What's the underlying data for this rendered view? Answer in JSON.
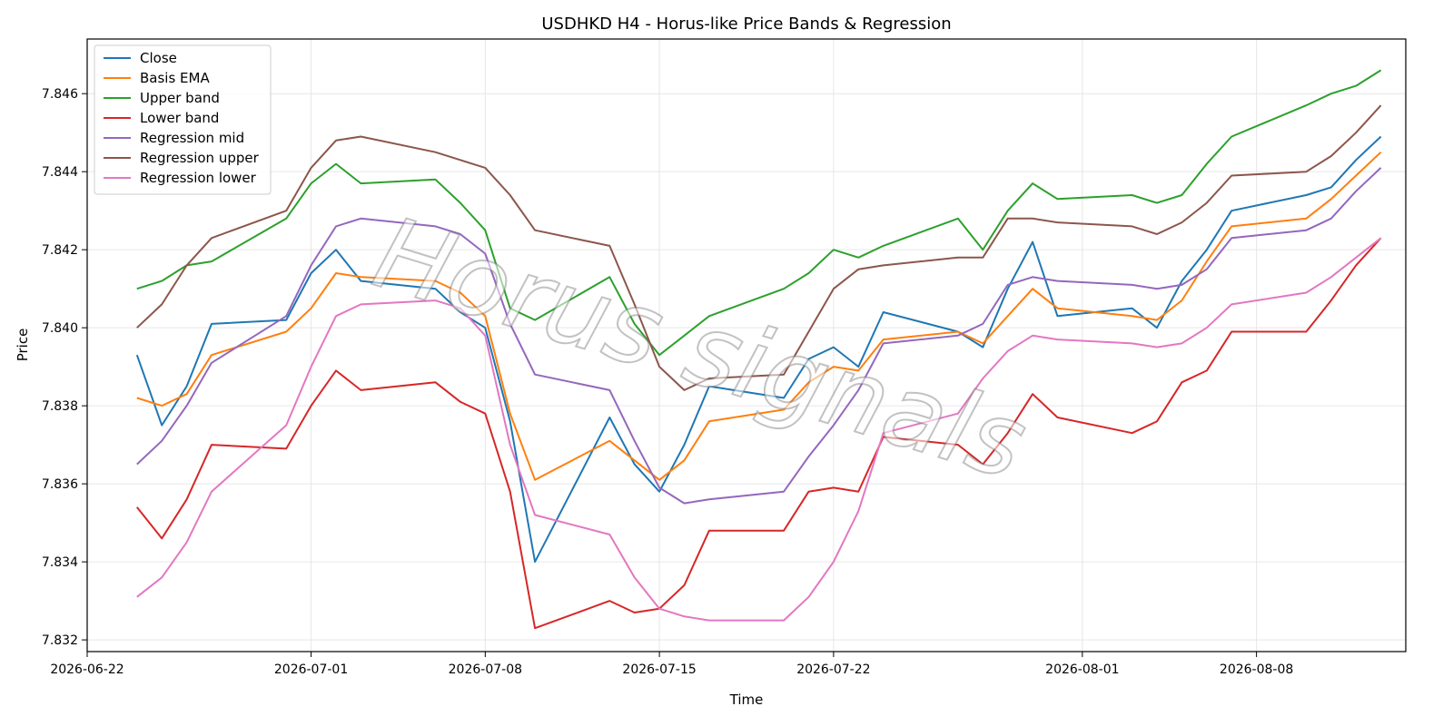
{
  "chart_data": {
    "type": "line",
    "title": "USDHKD H4 - Horus-like Price Bands & Regression",
    "xlabel": "Time",
    "ylabel": "Price",
    "x_axis_type": "date",
    "xlim": [
      "2026-06-22",
      "2026-08-14"
    ],
    "ylim": [
      7.8317,
      7.8474
    ],
    "x_ticks": [
      "2026-06-22",
      "2026-07-01",
      "2026-07-08",
      "2026-07-15",
      "2026-07-22",
      "2026-08-01",
      "2026-08-08"
    ],
    "y_ticks": [
      7.832,
      7.834,
      7.836,
      7.838,
      7.84,
      7.842,
      7.844,
      7.846
    ],
    "y_tick_labels": [
      "7.832",
      "7.834",
      "7.836",
      "7.838",
      "7.840",
      "7.842",
      "7.844",
      "7.846"
    ],
    "grid": true,
    "legend_position": "top-left",
    "watermark": "Horus signals",
    "series": [
      {
        "name": "Close",
        "color": "#1f77b4",
        "x": [
          "2026-06-24",
          "2026-06-25",
          "2026-06-26",
          "2026-06-27",
          "2026-06-30",
          "2026-07-01",
          "2026-07-02",
          "2026-07-03",
          "2026-07-06",
          "2026-07-07",
          "2026-07-08",
          "2026-07-09",
          "2026-07-10",
          "2026-07-13",
          "2026-07-14",
          "2026-07-15",
          "2026-07-16",
          "2026-07-17",
          "2026-07-20",
          "2026-07-21",
          "2026-07-22",
          "2026-07-23",
          "2026-07-24",
          "2026-07-27",
          "2026-07-28",
          "2026-07-29",
          "2026-07-30",
          "2026-07-31",
          "2026-08-03",
          "2026-08-04",
          "2026-08-05",
          "2026-08-06",
          "2026-08-07",
          "2026-08-10",
          "2026-08-11",
          "2026-08-12",
          "2026-08-13"
        ],
        "y": [
          7.8393,
          7.8375,
          7.8385,
          7.8401,
          7.8402,
          7.8414,
          7.842,
          7.8412,
          7.841,
          7.8404,
          7.84,
          7.8376,
          7.834,
          7.8377,
          7.8365,
          7.8358,
          7.837,
          7.8385,
          7.8382,
          7.8392,
          7.8395,
          7.839,
          7.8404,
          7.8399,
          7.8395,
          7.841,
          7.8422,
          7.8403,
          7.8405,
          7.84,
          7.8412,
          7.842,
          7.843,
          7.8434,
          7.8436,
          7.8443,
          7.8449
        ]
      },
      {
        "name": "Basis EMA",
        "color": "#ff7f0e",
        "x": [
          "2026-06-24",
          "2026-06-25",
          "2026-06-26",
          "2026-06-27",
          "2026-06-30",
          "2026-07-01",
          "2026-07-02",
          "2026-07-03",
          "2026-07-06",
          "2026-07-07",
          "2026-07-08",
          "2026-07-09",
          "2026-07-10",
          "2026-07-13",
          "2026-07-14",
          "2026-07-15",
          "2026-07-16",
          "2026-07-17",
          "2026-07-20",
          "2026-07-21",
          "2026-07-22",
          "2026-07-23",
          "2026-07-24",
          "2026-07-27",
          "2026-07-28",
          "2026-07-29",
          "2026-07-30",
          "2026-07-31",
          "2026-08-03",
          "2026-08-04",
          "2026-08-05",
          "2026-08-06",
          "2026-08-07",
          "2026-08-10",
          "2026-08-11",
          "2026-08-12",
          "2026-08-13"
        ],
        "y": [
          7.8382,
          7.838,
          7.8383,
          7.8393,
          7.8399,
          7.8405,
          7.8414,
          7.8413,
          7.8412,
          7.8409,
          7.8403,
          7.8378,
          7.8361,
          7.8371,
          7.8366,
          7.8361,
          7.8366,
          7.8376,
          7.8379,
          7.8386,
          7.839,
          7.8389,
          7.8397,
          7.8399,
          7.8396,
          7.8403,
          7.841,
          7.8405,
          7.8403,
          7.8402,
          7.8407,
          7.8417,
          7.8426,
          7.8428,
          7.8433,
          7.8439,
          7.8445
        ]
      },
      {
        "name": "Upper band",
        "color": "#2ca02c",
        "x": [
          "2026-06-24",
          "2026-06-25",
          "2026-06-26",
          "2026-06-27",
          "2026-06-30",
          "2026-07-01",
          "2026-07-02",
          "2026-07-03",
          "2026-07-06",
          "2026-07-07",
          "2026-07-08",
          "2026-07-09",
          "2026-07-10",
          "2026-07-13",
          "2026-07-14",
          "2026-07-15",
          "2026-07-16",
          "2026-07-17",
          "2026-07-20",
          "2026-07-21",
          "2026-07-22",
          "2026-07-23",
          "2026-07-24",
          "2026-07-27",
          "2026-07-28",
          "2026-07-29",
          "2026-07-30",
          "2026-07-31",
          "2026-08-03",
          "2026-08-04",
          "2026-08-05",
          "2026-08-06",
          "2026-08-07",
          "2026-08-10",
          "2026-08-11",
          "2026-08-12",
          "2026-08-13"
        ],
        "y": [
          7.841,
          7.8412,
          7.8416,
          7.8417,
          7.8428,
          7.8437,
          7.8442,
          7.8437,
          7.8438,
          7.8432,
          7.8425,
          7.8405,
          7.8402,
          7.8413,
          7.8401,
          7.8393,
          7.8398,
          7.8403,
          7.841,
          7.8414,
          7.842,
          7.8418,
          7.8421,
          7.8428,
          7.842,
          7.843,
          7.8437,
          7.8433,
          7.8434,
          7.8432,
          7.8434,
          7.8442,
          7.8449,
          7.8457,
          7.846,
          7.8462,
          7.8466
        ]
      },
      {
        "name": "Lower band",
        "color": "#d62728",
        "x": [
          "2026-06-24",
          "2026-06-25",
          "2026-06-26",
          "2026-06-27",
          "2026-06-30",
          "2026-07-01",
          "2026-07-02",
          "2026-07-03",
          "2026-07-06",
          "2026-07-07",
          "2026-07-08",
          "2026-07-09",
          "2026-07-10",
          "2026-07-13",
          "2026-07-14",
          "2026-07-15",
          "2026-07-16",
          "2026-07-17",
          "2026-07-20",
          "2026-07-21",
          "2026-07-22",
          "2026-07-23",
          "2026-07-24",
          "2026-07-27",
          "2026-07-28",
          "2026-07-29",
          "2026-07-30",
          "2026-07-31",
          "2026-08-03",
          "2026-08-04",
          "2026-08-05",
          "2026-08-06",
          "2026-08-07",
          "2026-08-10",
          "2026-08-11",
          "2026-08-12",
          "2026-08-13"
        ],
        "y": [
          7.8354,
          7.8346,
          7.8356,
          7.837,
          7.8369,
          7.838,
          7.8389,
          7.8384,
          7.8386,
          7.8381,
          7.8378,
          7.8358,
          7.8323,
          7.833,
          7.8327,
          7.8328,
          7.8334,
          7.8348,
          7.8348,
          7.8358,
          7.8359,
          7.8358,
          7.8372,
          7.837,
          7.8365,
          7.8373,
          7.8383,
          7.8377,
          7.8373,
          7.8376,
          7.8386,
          7.8389,
          7.8399,
          7.8399,
          7.8407,
          7.8416,
          7.8423
        ]
      },
      {
        "name": "Regression mid",
        "color": "#9467bd",
        "x": [
          "2026-06-24",
          "2026-06-25",
          "2026-06-26",
          "2026-06-27",
          "2026-06-30",
          "2026-07-01",
          "2026-07-02",
          "2026-07-03",
          "2026-07-06",
          "2026-07-07",
          "2026-07-08",
          "2026-07-09",
          "2026-07-10",
          "2026-07-13",
          "2026-07-14",
          "2026-07-15",
          "2026-07-16",
          "2026-07-17",
          "2026-07-20",
          "2026-07-21",
          "2026-07-22",
          "2026-07-23",
          "2026-07-24",
          "2026-07-27",
          "2026-07-28",
          "2026-07-29",
          "2026-07-30",
          "2026-07-31",
          "2026-08-03",
          "2026-08-04",
          "2026-08-05",
          "2026-08-06",
          "2026-08-07",
          "2026-08-10",
          "2026-08-11",
          "2026-08-12",
          "2026-08-13"
        ],
        "y": [
          7.8365,
          7.8371,
          7.838,
          7.8391,
          7.8403,
          7.8416,
          7.8426,
          7.8428,
          7.8426,
          7.8424,
          7.8419,
          7.8401,
          7.8388,
          7.8384,
          7.8371,
          7.8359,
          7.8355,
          7.8356,
          7.8358,
          7.8367,
          7.8375,
          7.8384,
          7.8396,
          7.8398,
          7.8401,
          7.8411,
          7.8413,
          7.8412,
          7.8411,
          7.841,
          7.8411,
          7.8415,
          7.8423,
          7.8425,
          7.8428,
          7.8435,
          7.8441
        ]
      },
      {
        "name": "Regression upper",
        "color": "#8c564b",
        "x": [
          "2026-06-24",
          "2026-06-25",
          "2026-06-26",
          "2026-06-27",
          "2026-06-30",
          "2026-07-01",
          "2026-07-02",
          "2026-07-03",
          "2026-07-06",
          "2026-07-07",
          "2026-07-08",
          "2026-07-09",
          "2026-07-10",
          "2026-07-13",
          "2026-07-14",
          "2026-07-15",
          "2026-07-16",
          "2026-07-17",
          "2026-07-20",
          "2026-07-21",
          "2026-07-22",
          "2026-07-23",
          "2026-07-24",
          "2026-07-27",
          "2026-07-28",
          "2026-07-29",
          "2026-07-30",
          "2026-07-31",
          "2026-08-03",
          "2026-08-04",
          "2026-08-05",
          "2026-08-06",
          "2026-08-07",
          "2026-08-10",
          "2026-08-11",
          "2026-08-12",
          "2026-08-13"
        ],
        "y": [
          7.84,
          7.8406,
          7.8416,
          7.8423,
          7.843,
          7.8441,
          7.8448,
          7.8449,
          7.8445,
          7.8443,
          7.8441,
          7.8434,
          7.8425,
          7.8421,
          7.8406,
          7.839,
          7.8384,
          7.8387,
          7.8388,
          7.8399,
          7.841,
          7.8415,
          7.8416,
          7.8418,
          7.8418,
          7.8428,
          7.8428,
          7.8427,
          7.8426,
          7.8424,
          7.8427,
          7.8432,
          7.8439,
          7.844,
          7.8444,
          7.845,
          7.8457
        ]
      },
      {
        "name": "Regression lower",
        "color": "#e377c2",
        "x": [
          "2026-06-24",
          "2026-06-25",
          "2026-06-26",
          "2026-06-27",
          "2026-06-30",
          "2026-07-01",
          "2026-07-02",
          "2026-07-03",
          "2026-07-06",
          "2026-07-07",
          "2026-07-08",
          "2026-07-09",
          "2026-07-10",
          "2026-07-13",
          "2026-07-14",
          "2026-07-15",
          "2026-07-16",
          "2026-07-17",
          "2026-07-20",
          "2026-07-21",
          "2026-07-22",
          "2026-07-23",
          "2026-07-24",
          "2026-07-27",
          "2026-07-28",
          "2026-07-29",
          "2026-07-30",
          "2026-07-31",
          "2026-08-03",
          "2026-08-04",
          "2026-08-05",
          "2026-08-06",
          "2026-08-07",
          "2026-08-10",
          "2026-08-11",
          "2026-08-12",
          "2026-08-13"
        ],
        "y": [
          7.8331,
          7.8336,
          7.8345,
          7.8358,
          7.8375,
          7.839,
          7.8403,
          7.8406,
          7.8407,
          7.8405,
          7.8398,
          7.837,
          7.8352,
          7.8347,
          7.8336,
          7.8328,
          7.8326,
          7.8325,
          7.8325,
          7.8331,
          7.834,
          7.8353,
          7.8373,
          7.8378,
          7.8387,
          7.8394,
          7.8398,
          7.8397,
          7.8396,
          7.8395,
          7.8396,
          7.84,
          7.8406,
          7.8409,
          7.8413,
          7.8418,
          7.8423
        ]
      }
    ]
  }
}
